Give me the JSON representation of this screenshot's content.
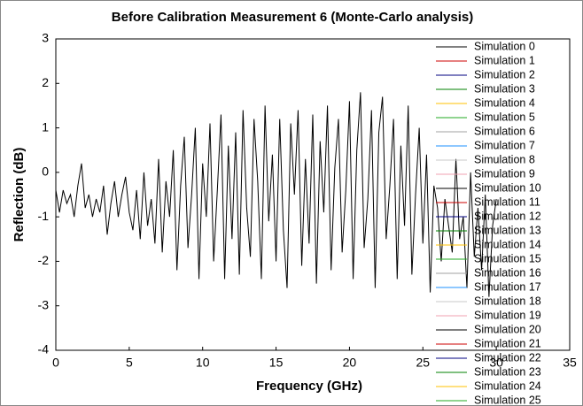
{
  "chart_data": {
    "type": "line",
    "title": "Before Calibration Measurement 6 (Monte-Carlo analysis)",
    "x_label": "Frequency (GHz)",
    "y_label": "Reflection (dB)",
    "xlim": [
      0,
      35
    ],
    "xticks": [
      0,
      5,
      10,
      15,
      20,
      25,
      30,
      35
    ],
    "ylim": [
      -4,
      3
    ],
    "yticks": [
      -4,
      -3,
      -2,
      -1,
      0,
      1,
      2,
      3
    ],
    "legend": "upper right",
    "series": [
      {
        "name": "Simulation 0",
        "color": "#000000",
        "x": [
          0,
          0.25,
          0.5,
          0.75,
          1,
          1.25,
          1.5,
          1.75,
          2,
          2.25,
          2.5,
          2.75,
          3,
          3.25,
          3.5,
          3.75,
          4,
          4.25,
          4.5,
          4.75,
          5,
          5.25,
          5.5,
          5.75,
          6,
          6.25,
          6.5,
          6.75,
          7,
          7.25,
          7.5,
          7.75,
          8,
          8.25,
          8.5,
          8.75,
          9,
          9.25,
          9.5,
          9.75,
          10,
          10.25,
          10.5,
          10.75,
          11,
          11.25,
          11.5,
          11.75,
          12,
          12.25,
          12.5,
          12.75,
          13,
          13.25,
          13.5,
          13.75,
          14,
          14.25,
          14.5,
          14.75,
          15,
          15.25,
          15.5,
          15.75,
          16,
          16.25,
          16.5,
          16.75,
          17,
          17.25,
          17.5,
          17.75,
          18,
          18.25,
          18.5,
          18.75,
          19,
          19.25,
          19.5,
          19.75,
          20,
          20.25,
          20.5,
          20.75,
          21,
          21.25,
          21.5,
          21.75,
          22,
          22.25,
          22.5,
          22.75,
          23,
          23.25,
          23.5,
          23.75,
          24,
          24.25,
          24.5,
          24.75,
          25,
          25.25,
          25.5,
          25.75,
          26,
          26.25,
          26.5,
          26.75,
          27,
          27.25,
          27.5,
          27.75,
          28,
          28.25,
          28.5,
          28.75,
          29,
          29.25,
          29.5,
          29.75,
          30
        ],
        "values": [
          -0.4,
          -0.9,
          -0.4,
          -0.7,
          -0.5,
          -1.0,
          -0.3,
          0.2,
          -0.8,
          -0.5,
          -1.0,
          -0.6,
          -0.9,
          -0.3,
          -1.4,
          -0.7,
          -0.2,
          -1.0,
          -0.5,
          -0.1,
          -0.9,
          -1.3,
          -0.4,
          -1.5,
          0.0,
          -1.2,
          -0.6,
          -1.6,
          0.3,
          -1.8,
          -0.2,
          -1.0,
          0.5,
          -2.2,
          -0.3,
          0.8,
          -1.7,
          -0.5,
          1.0,
          -2.4,
          0.2,
          -1.0,
          1.1,
          -2.0,
          -0.4,
          1.3,
          -2.4,
          0.6,
          -1.5,
          0.9,
          -2.3,
          1.4,
          -0.8,
          -1.9,
          1.2,
          -0.2,
          -2.4,
          1.5,
          -1.1,
          0.4,
          -2.0,
          1.2,
          -1.3,
          -2.6,
          1.1,
          -0.5,
          1.4,
          -2.1,
          0.3,
          -1.6,
          1.3,
          -2.5,
          0.7,
          -0.9,
          1.5,
          -2.2,
          0.1,
          1.2,
          -1.8,
          -0.4,
          1.6,
          -2.4,
          0.5,
          1.8,
          -1.7,
          -0.6,
          1.4,
          -2.6,
          0.9,
          1.7,
          -1.5,
          -0.3,
          1.2,
          -2.4,
          0.6,
          -1.2,
          1.5,
          -2.3,
          -0.5,
          1.0,
          -1.6,
          0.4,
          -2.7,
          -0.3,
          -0.8,
          -2.0,
          -0.6,
          -1.2,
          -1.8,
          0.3,
          -1.5,
          -1.0,
          -2.6,
          0.0,
          -1.9,
          -0.8,
          -2.2,
          -0.5,
          -2.8,
          -1.2,
          -0.6
        ]
      },
      {
        "name": "Simulation 1",
        "color": "#cc0000",
        "x": [],
        "values": []
      },
      {
        "name": "Simulation 2",
        "color": "#000080",
        "x": [],
        "values": []
      },
      {
        "name": "Simulation 3",
        "color": "#008000",
        "x": [],
        "values": []
      },
      {
        "name": "Simulation 4",
        "color": "#ffc000",
        "x": [],
        "values": []
      },
      {
        "name": "Simulation 5",
        "color": "#22aa22",
        "x": [],
        "values": []
      },
      {
        "name": "Simulation 6",
        "color": "#a0a0a0",
        "x": [],
        "values": []
      },
      {
        "name": "Simulation 7",
        "color": "#1e90ff",
        "x": [],
        "values": []
      },
      {
        "name": "Simulation 8",
        "color": "#c8c8c8",
        "x": [],
        "values": []
      },
      {
        "name": "Simulation 9",
        "color": "#f0a0b0",
        "x": [],
        "values": []
      },
      {
        "name": "Simulation 10",
        "color": "#000000",
        "x": [],
        "values": []
      },
      {
        "name": "Simulation 11",
        "color": "#cc0000",
        "x": [],
        "values": []
      },
      {
        "name": "Simulation 12",
        "color": "#000080",
        "x": [],
        "values": []
      },
      {
        "name": "Simulation 13",
        "color": "#008000",
        "x": [],
        "values": []
      },
      {
        "name": "Simulation 14",
        "color": "#ffc000",
        "x": [],
        "values": []
      },
      {
        "name": "Simulation 15",
        "color": "#22aa22",
        "x": [],
        "values": []
      },
      {
        "name": "Simulation 16",
        "color": "#a0a0a0",
        "x": [],
        "values": []
      },
      {
        "name": "Simulation 17",
        "color": "#1e90ff",
        "x": [],
        "values": []
      },
      {
        "name": "Simulation 18",
        "color": "#c8c8c8",
        "x": [],
        "values": []
      },
      {
        "name": "Simulation 19",
        "color": "#f0a0b0",
        "x": [],
        "values": []
      },
      {
        "name": "Simulation 20",
        "color": "#000000",
        "x": [],
        "values": []
      },
      {
        "name": "Simulation 21",
        "color": "#cc0000",
        "x": [],
        "values": []
      },
      {
        "name": "Simulation 22",
        "color": "#000080",
        "x": [],
        "values": []
      },
      {
        "name": "Simulation 23",
        "color": "#008000",
        "x": [],
        "values": []
      },
      {
        "name": "Simulation 24",
        "color": "#ffc000",
        "x": [],
        "values": []
      },
      {
        "name": "Simulation 25",
        "color": "#22aa22",
        "x": [],
        "values": []
      }
    ]
  }
}
